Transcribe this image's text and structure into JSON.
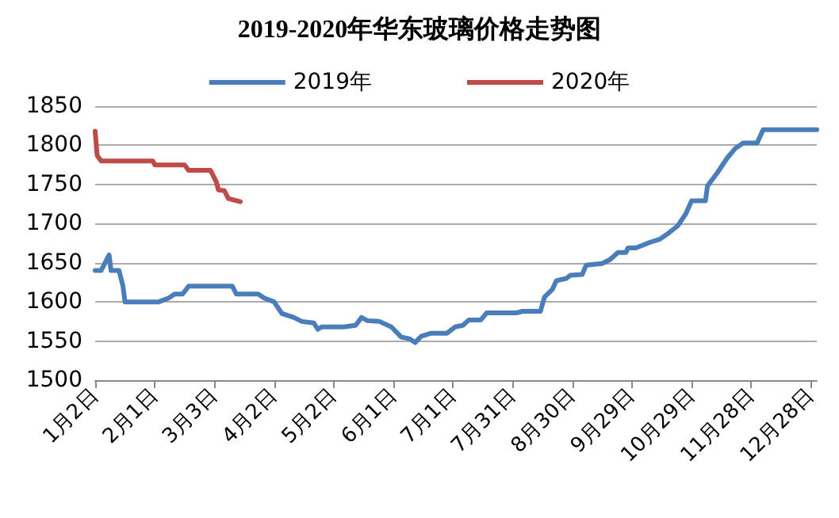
{
  "chart_data": {
    "type": "line",
    "title": "2019-2020年华东玻璃价格走势图",
    "xlim": [
      "--01-02",
      "--12-31"
    ],
    "xticks": [
      {
        "value": "--01-02",
        "label": "1月2日"
      },
      {
        "value": "--02-01",
        "label": "2月1日"
      },
      {
        "value": "--03-03",
        "label": "3月3日"
      },
      {
        "value": "--04-02",
        "label": "4月2日"
      },
      {
        "value": "--05-02",
        "label": "5月2日"
      },
      {
        "value": "--06-01",
        "label": "6月1日"
      },
      {
        "value": "--07-01",
        "label": "7月1日"
      },
      {
        "value": "--07-31",
        "label": "7月31日"
      },
      {
        "value": "--08-30",
        "label": "8月30日"
      },
      {
        "value": "--09-29",
        "label": "9月29日"
      },
      {
        "value": "--10-29",
        "label": "10月29日"
      },
      {
        "value": "--11-28",
        "label": "11月28日"
      },
      {
        "value": "--12-28",
        "label": "12月28日"
      }
    ],
    "ylim": [
      1500,
      1850
    ],
    "yticks": [
      1500,
      1550,
      1600,
      1650,
      1700,
      1750,
      1800,
      1850
    ],
    "grid": "y",
    "legend": "top",
    "marker": "none",
    "line_style": "solid",
    "series": [
      {
        "name": "2019年",
        "color": "#4a7ebb",
        "x": [
          "--01-02",
          "--01-05",
          "--01-09",
          "--01-10",
          "--01-14",
          "--01-16",
          "--01-17",
          "--02-03",
          "--02-08",
          "--02-11",
          "--02-15",
          "--02-18",
          "--03-12",
          "--03-14",
          "--03-25",
          "--03-28",
          "--04-02",
          "--04-06",
          "--04-12",
          "--04-16",
          "--04-22",
          "--04-24",
          "--04-26",
          "--05-07",
          "--05-13",
          "--05-16",
          "--05-19",
          "--05-25",
          "--05-31",
          "--06-05",
          "--06-09",
          "--06-12",
          "--06-15",
          "--06-20",
          "--06-28",
          "--07-02",
          "--07-06",
          "--07-09",
          "--07-15",
          "--07-18",
          "--08-02",
          "--08-05",
          "--08-14",
          "--08-16",
          "--08-20",
          "--08-22",
          "--08-27",
          "--08-29",
          "--09-04",
          "--09-06",
          "--09-14",
          "--09-18",
          "--09-22",
          "--09-26",
          "--09-27",
          "--10-01",
          "--10-08",
          "--10-13",
          "--10-17",
          "--10-22",
          "--10-26",
          "--10-29",
          "--11-05",
          "--11-06",
          "--11-11",
          "--11-16",
          "--11-20",
          "--11-24",
          "--12-01",
          "--12-04",
          "--12-31"
        ],
        "values": [
          1640,
          1640,
          1660,
          1640,
          1640,
          1620,
          1600,
          1600,
          1605,
          1610,
          1610,
          1620,
          1620,
          1610,
          1610,
          1605,
          1600,
          1585,
          1580,
          1575,
          1573,
          1565,
          1568,
          1568,
          1570,
          1580,
          1576,
          1575,
          1568,
          1555,
          1553,
          1548,
          1556,
          1560,
          1560,
          1568,
          1570,
          1577,
          1577,
          1586,
          1586,
          1588,
          1588,
          1606,
          1616,
          1627,
          1630,
          1634,
          1635,
          1647,
          1649,
          1654,
          1663,
          1663,
          1669,
          1669,
          1676,
          1680,
          1687,
          1697,
          1712,
          1729,
          1729,
          1748,
          1765,
          1784,
          1796,
          1803,
          1803,
          1820,
          1820
        ]
      },
      {
        "name": "2020年",
        "color": "#be4b48",
        "x": [
          "--01-02",
          "--01-03",
          "--01-05",
          "--01-31",
          "--02-01",
          "--02-16",
          "--02-18",
          "--03-01",
          "--03-04",
          "--03-05",
          "--03-08",
          "--03-10",
          "--03-16"
        ],
        "values": [
          1818,
          1787,
          1780,
          1780,
          1775,
          1775,
          1768,
          1768,
          1753,
          1743,
          1742,
          1732,
          1728
        ]
      }
    ]
  }
}
